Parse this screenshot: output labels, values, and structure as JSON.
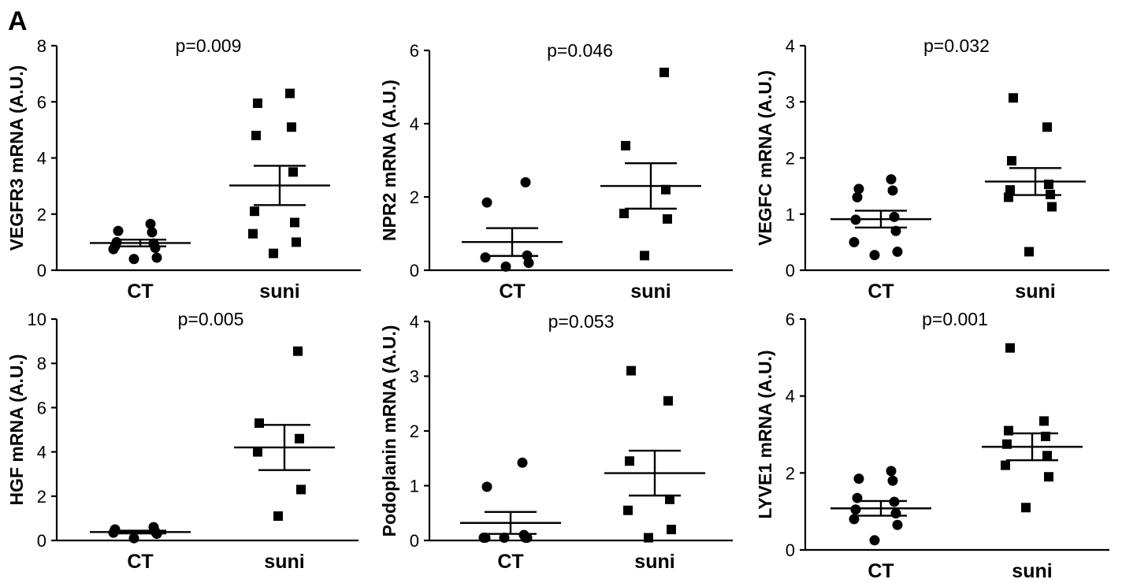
{
  "figure_label": "A",
  "chart_data": [
    {
      "type": "scatter",
      "ylabel": "VEGFR3 mRNA (A.U.)",
      "ylim": [
        0,
        8
      ],
      "yticks": [
        0,
        2,
        4,
        6,
        8
      ],
      "categories": [
        "CT",
        "suni"
      ],
      "annotation": "p=0.009",
      "series": [
        {
          "category": "CT",
          "marker": "circle",
          "mean": 0.97,
          "sem": 0.12,
          "values": [
            0.4,
            0.45,
            0.75,
            0.8,
            0.85,
            0.95,
            1.0,
            1.35,
            1.4,
            1.65
          ]
        },
        {
          "category": "suni",
          "marker": "square",
          "mean": 3.02,
          "sem": 0.7,
          "values": [
            0.6,
            1.0,
            1.3,
            1.7,
            2.1,
            3.5,
            4.8,
            5.1,
            5.95,
            6.3
          ]
        }
      ]
    },
    {
      "type": "scatter",
      "ylabel": "NPR2 mRNA (A.U.)",
      "ylim": [
        0,
        6
      ],
      "yticks": [
        0,
        2,
        4,
        6
      ],
      "categories": [
        "CT",
        "suni"
      ],
      "annotation": "p=0.046",
      "series": [
        {
          "category": "CT",
          "marker": "circle",
          "mean": 0.77,
          "sem": 0.38,
          "values": [
            0.1,
            0.2,
            0.35,
            0.4,
            1.85,
            2.4
          ]
        },
        {
          "category": "suni",
          "marker": "square",
          "mean": 2.3,
          "sem": 0.62,
          "values": [
            0.4,
            1.4,
            1.55,
            2.2,
            3.4,
            5.4
          ]
        }
      ]
    },
    {
      "type": "scatter",
      "ylabel": "VEGFC mRNA (A.U.)",
      "ylim": [
        0,
        4
      ],
      "yticks": [
        0,
        1,
        2,
        3,
        4
      ],
      "categories": [
        "CT",
        "suni"
      ],
      "annotation": "p=0.032",
      "series": [
        {
          "category": "CT",
          "marker": "circle",
          "mean": 0.91,
          "sem": 0.15,
          "values": [
            0.27,
            0.33,
            0.5,
            0.7,
            0.9,
            0.95,
            1.3,
            1.42,
            1.45,
            1.62
          ]
        },
        {
          "category": "suni",
          "marker": "square",
          "mean": 1.58,
          "sem": 0.24,
          "values": [
            0.33,
            1.13,
            1.3,
            1.35,
            1.43,
            1.53,
            1.95,
            2.55,
            3.07
          ]
        }
      ]
    },
    {
      "type": "scatter",
      "ylabel": "HGF mRNA (A.U.)",
      "ylim": [
        0,
        10
      ],
      "yticks": [
        0,
        2,
        4,
        6,
        8,
        10
      ],
      "categories": [
        "CT",
        "suni"
      ],
      "annotation": "p=0.005",
      "series": [
        {
          "category": "CT",
          "marker": "circle",
          "mean": 0.38,
          "sem": 0.06,
          "values": [
            0.1,
            0.3,
            0.35,
            0.4,
            0.5,
            0.6
          ]
        },
        {
          "category": "suni",
          "marker": "square",
          "mean": 4.2,
          "sem": 1.02,
          "values": [
            1.1,
            2.3,
            4.0,
            4.6,
            5.3,
            8.55
          ]
        }
      ]
    },
    {
      "type": "scatter",
      "ylabel": "Podoplanin mRNA (A.U.)",
      "ylim": [
        0,
        4
      ],
      "yticks": [
        0,
        1,
        2,
        3,
        4
      ],
      "categories": [
        "CT",
        "suni"
      ],
      "annotation": "p=0.053",
      "series": [
        {
          "category": "CT",
          "marker": "circle",
          "mean": 0.32,
          "sem": 0.2,
          "values": [
            0.05,
            0.05,
            0.05,
            0.05,
            0.05,
            0.1,
            0.98,
            1.42
          ]
        },
        {
          "category": "suni",
          "marker": "square",
          "mean": 1.23,
          "sem": 0.41,
          "values": [
            0.05,
            0.2,
            0.55,
            0.75,
            1.45,
            2.55,
            3.1
          ]
        }
      ]
    },
    {
      "type": "scatter",
      "ylabel": "LYVE1 mRNA (A.U.)",
      "ylim": [
        0,
        6
      ],
      "yticks": [
        0,
        2,
        4,
        6
      ],
      "categories": [
        "CT",
        "suni"
      ],
      "annotation": "p=0.001",
      "series": [
        {
          "category": "CT",
          "marker": "circle",
          "mean": 1.08,
          "sem": 0.19,
          "values": [
            0.25,
            0.65,
            0.8,
            0.95,
            1.05,
            1.25,
            1.35,
            1.8,
            1.85,
            2.05
          ]
        },
        {
          "category": "suni",
          "marker": "square",
          "mean": 2.68,
          "sem": 0.35,
          "values": [
            1.1,
            1.9,
            2.2,
            2.45,
            2.75,
            2.95,
            3.1,
            3.35,
            5.25
          ]
        }
      ]
    }
  ]
}
